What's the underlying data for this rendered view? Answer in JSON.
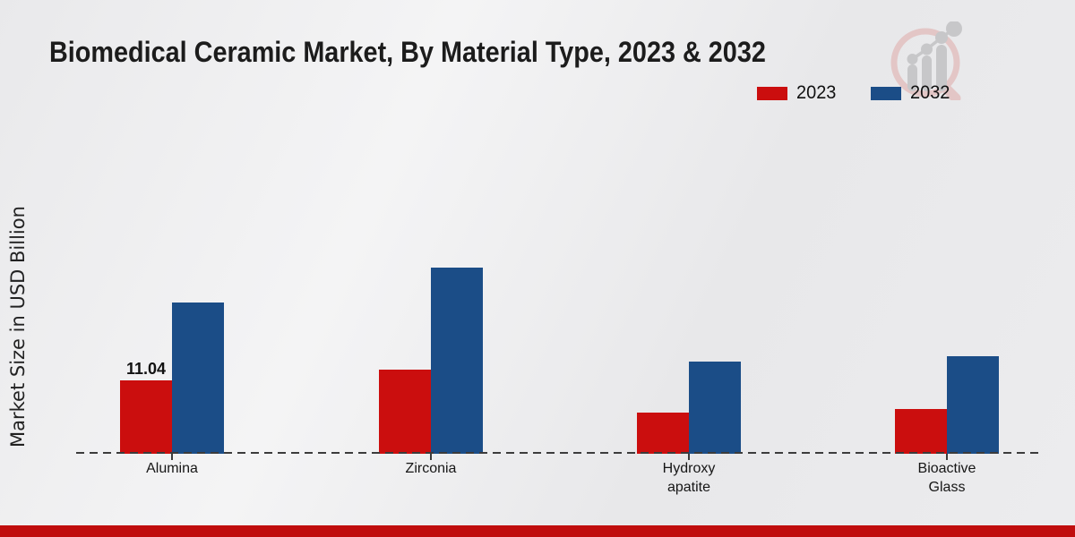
{
  "title": "Biomedical Ceramic Market, By Material Type, 2023 & 2032",
  "icons": {
    "logo": "magnifier-bar-chart-watermark"
  },
  "colors": {
    "accent_bar": "#c00d0d",
    "baseline": "#3c3c3c",
    "series_2023": "#cb0e0e",
    "series_2032": "#1b4d87",
    "logo_ring": "#e3c6c6",
    "logo_bars": "#c7c7c9"
  },
  "chart_data": {
    "type": "bar",
    "title": "Biomedical Ceramic Market, By Material Type, 2023 & 2032",
    "categories": [
      "Alumina",
      "Zirconia",
      "Hydroxy apatite",
      "Bioactive Glass"
    ],
    "series": [
      {
        "name": "2023",
        "color": "#cb0e0e",
        "values": [
          11.04,
          12.65,
          6.2,
          6.7
        ]
      },
      {
        "name": "2032",
        "color": "#1b4d87",
        "values": [
          22.75,
          28.0,
          13.9,
          14.7
        ]
      }
    ],
    "xlabel": "",
    "ylabel": "Market Size in USD Billion",
    "ylim": [
      0,
      30
    ],
    "grid": false,
    "y_axis_ticks_visible": false,
    "legend_position": "top-right",
    "baseline_style": "dashed",
    "annotations": [
      {
        "series_index": 0,
        "category_index": 0,
        "text": "11.04"
      }
    ]
  }
}
